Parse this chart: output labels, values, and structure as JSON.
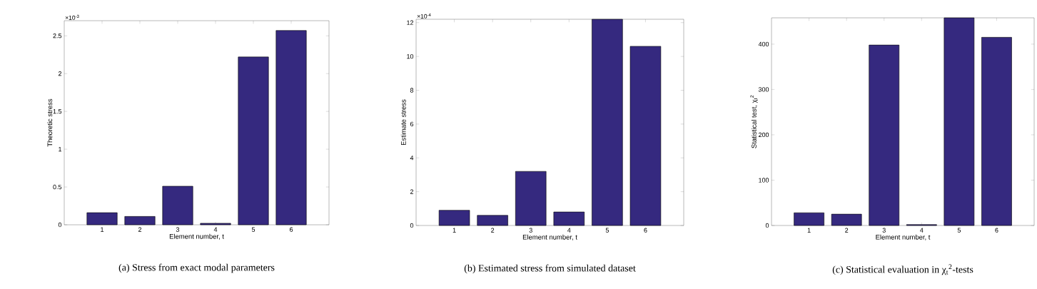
{
  "chart_data": [
    {
      "type": "bar",
      "title": "(a) Stress from exact modal parameters",
      "xlabel": "Element number, t",
      "ylabel": "Theoretic stress",
      "categories": [
        "1",
        "2",
        "3",
        "4",
        "5",
        "6"
      ],
      "values": [
        0.16,
        0.11,
        0.51,
        0.02,
        2.22,
        2.57
      ],
      "color": "#35297f",
      "ylim": [
        0,
        2.7
      ],
      "yticks": [
        0,
        0.5,
        1,
        1.5,
        2,
        2.5
      ],
      "annotations": [
        "×10$^{-3}$"
      ]
    },
    {
      "type": "bar",
      "title": "(b) Estimated stress from simulated dataset",
      "xlabel": "Element number, t",
      "ylabel": "Estimate stress",
      "categories": [
        "1",
        "2",
        "3",
        "4",
        "5",
        "6"
      ],
      "values": [
        0.9,
        0.6,
        3.2,
        0.8,
        12.2,
        10.6
      ],
      "color": "#35297f",
      "ylim": [
        0,
        12.2
      ],
      "yticks": [
        0,
        2,
        4,
        6,
        8,
        10,
        12
      ],
      "annotations": [
        "×10$^{-4}$"
      ]
    },
    {
      "type": "bar",
      "title": "(c) Statistical evaluation in χ$_{t}$$^{2}$-tests",
      "xlabel": "Element number, t",
      "ylabel": "Statistical test, χ$_{t}$$^{2}$",
      "categories": [
        "1",
        "2",
        "3",
        "4",
        "5",
        "6"
      ],
      "values": [
        28,
        25,
        398,
        2,
        458,
        415
      ],
      "color": "#35297f",
      "ylim": [
        0,
        458
      ],
      "yticks": [
        0,
        100,
        200,
        300,
        400
      ]
    }
  ]
}
